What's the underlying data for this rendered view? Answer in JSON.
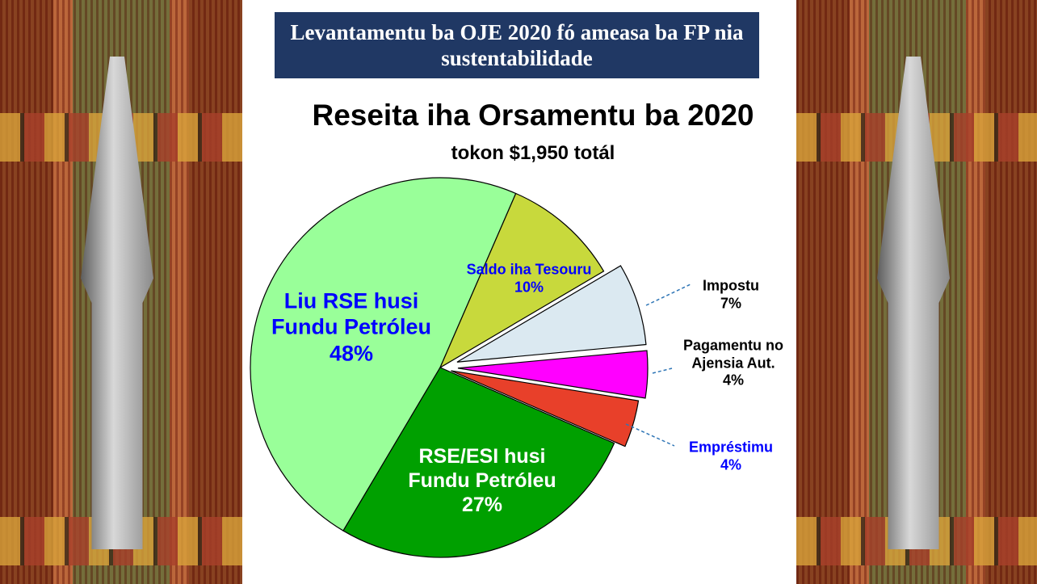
{
  "header": {
    "title": "Levantamentu ba OJE 2020 fó ameasa ba FP nia sustentabilidade"
  },
  "chart_data": {
    "type": "pie",
    "title": "Reseita iha Orsamentu ba 2020",
    "subtitle": "tokon $1,950 totál",
    "categories": [
      "Liu RSE husi Fundu Petróleu",
      "Saldo iha Tesouru",
      "Impostu",
      "Pagamentu no Ajensia Aut.",
      "Empréstimu",
      "RSE/ESI husi Fundu Petróleu"
    ],
    "values": [
      48,
      10,
      7,
      4,
      4,
      27
    ],
    "value_labels": [
      "48%",
      "10%",
      "7%",
      "4%",
      "4%",
      "27%"
    ],
    "colors": [
      "#99ff99",
      "#c8d93c",
      "#dbe9f1",
      "#ff00ff",
      "#e8402a",
      "#00a000"
    ]
  }
}
